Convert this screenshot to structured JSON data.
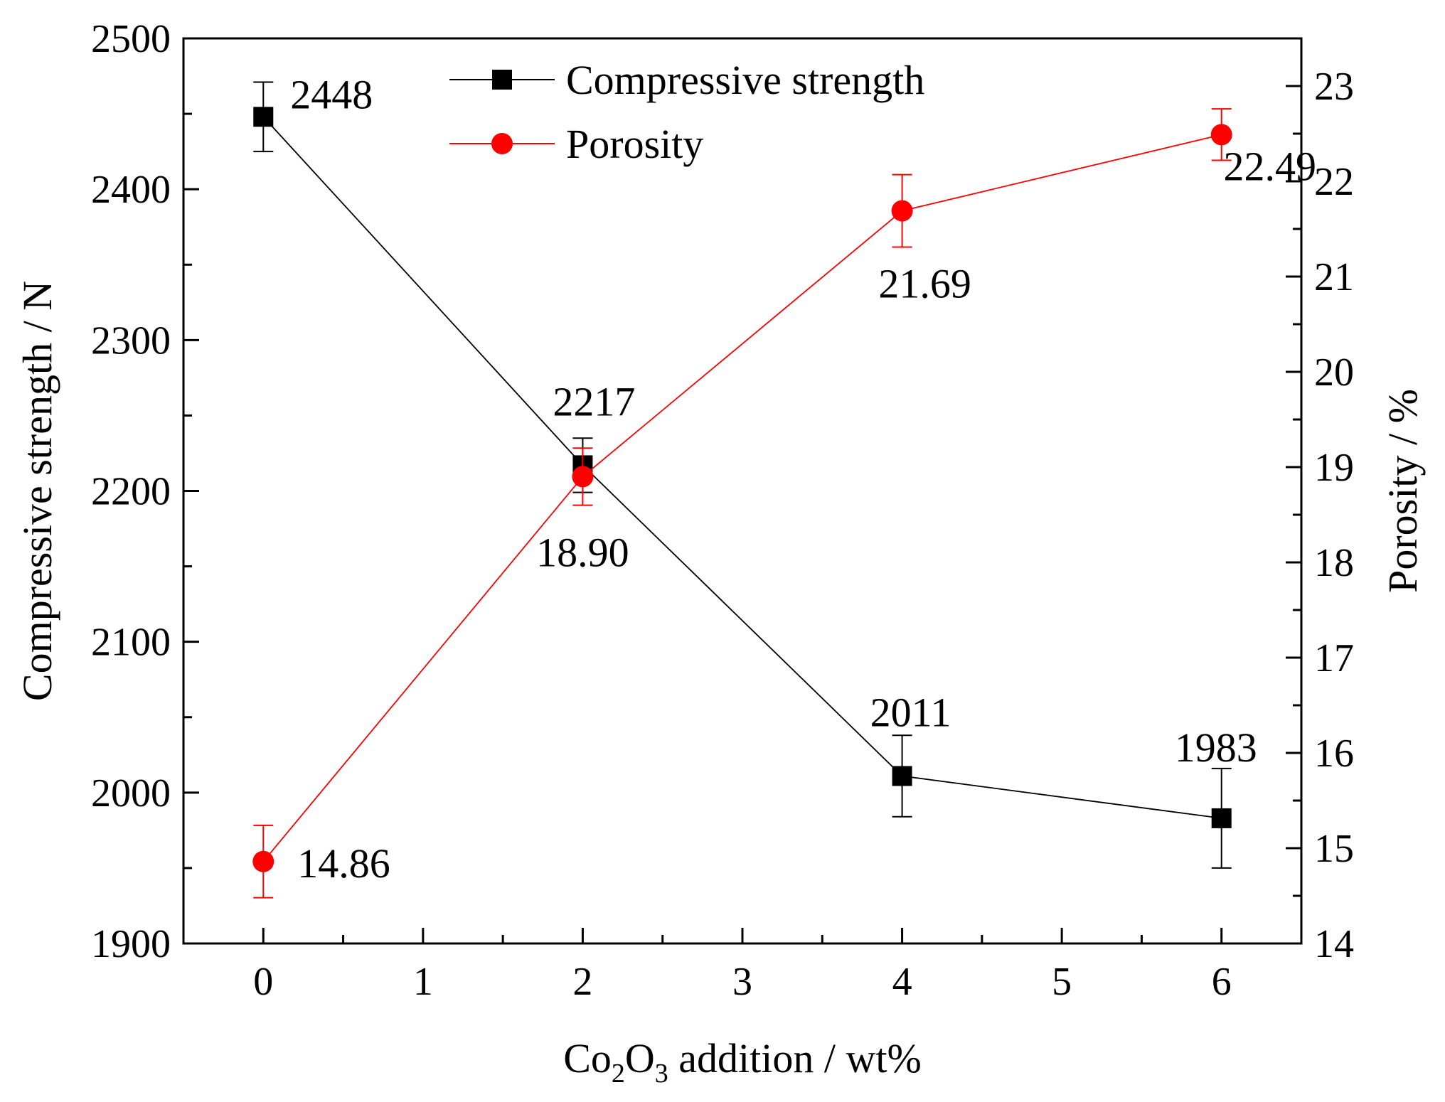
{
  "chart_data": {
    "type": "line",
    "x": [
      0,
      2,
      4,
      6
    ],
    "xlim": [
      -0.5,
      6.5
    ],
    "xticks": [
      0,
      1,
      2,
      3,
      4,
      5,
      6
    ],
    "xlabel_parts": {
      "pre": "Co",
      "sub1": "2",
      "mid": "O",
      "sub2": "3",
      "post": " addition / wt%"
    },
    "ylabel_left": "Compressive strength / N",
    "ylabel_right": "Porosity / %",
    "ylim_left": [
      1900,
      2500
    ],
    "yticks_left": [
      1900,
      2000,
      2100,
      2200,
      2300,
      2400,
      2500
    ],
    "ylim_right": [
      14,
      23.5
    ],
    "yticks_right": [
      14,
      15,
      16,
      17,
      18,
      19,
      20,
      21,
      22,
      23
    ],
    "series": [
      {
        "name": "Compressive strength",
        "axis": "left",
        "color": "#000000",
        "marker": "square",
        "values": [
          2448,
          2217,
          2011,
          1983
        ],
        "errors": [
          23,
          18,
          27,
          33
        ],
        "labels": [
          "2448",
          "2217",
          "2011",
          "1983"
        ]
      },
      {
        "name": "Porosity",
        "axis": "right",
        "color": "#ff0000",
        "marker": "circle",
        "values": [
          14.86,
          18.9,
          21.69,
          22.49
        ],
        "errors": [
          0.38,
          0.3,
          0.38,
          0.27
        ],
        "labels": [
          "14.86",
          "18.90",
          "21.69",
          "22.49"
        ]
      }
    ]
  }
}
